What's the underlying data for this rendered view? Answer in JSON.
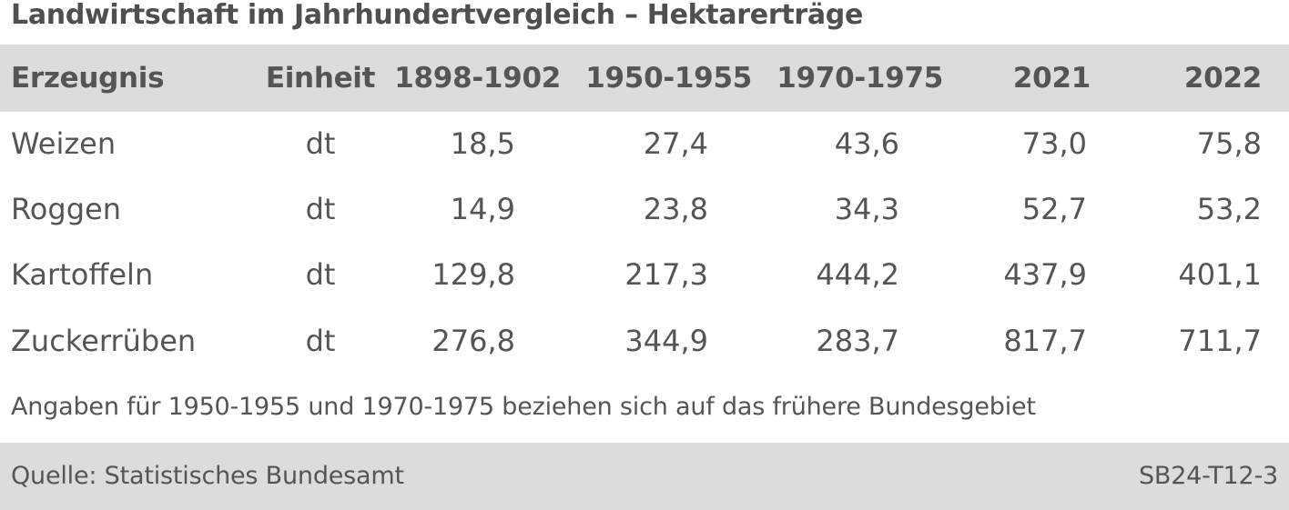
{
  "title": "Landwirtschaft im Jahrhundertvergleich – Hektarerträge",
  "table": {
    "headers": [
      "Erzeugnis",
      "Einheit",
      "1898-1902",
      "1950-1955",
      "1970-1975",
      "2021",
      "2022"
    ],
    "rows": [
      [
        "Weizen",
        "dt",
        "18,5",
        "27,4",
        "43,6",
        "73,0",
        "75,8"
      ],
      [
        "Roggen",
        "dt",
        "14,9",
        "23,8",
        "34,3",
        "52,7",
        "53,2"
      ],
      [
        "Kartoffeln",
        "dt",
        "129,8",
        "217,3",
        "444,2",
        "437,9",
        "401,1"
      ],
      [
        "Zuckerrüben",
        "dt",
        "276,8",
        "344,9",
        "283,7",
        "817,7",
        "711,7"
      ]
    ]
  },
  "footnote": "Angaben für 1950-1955 und 1970-1975 beziehen sich auf das frühere Bundesgebiet",
  "source": "Quelle: Statistisches Bundesamt",
  "code": "SB24-T12-3",
  "colors": {
    "band": "#dcdcdc",
    "text": "#555555"
  }
}
